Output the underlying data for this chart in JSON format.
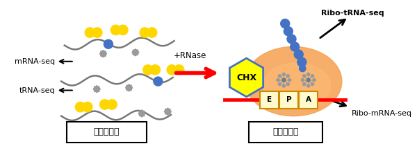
{
  "bg_color": "#ffffff",
  "label_mrna": "mRNA-seq",
  "label_trna": "tRNA-seq",
  "label_rnase": "+RNase",
  "label_chx": "CHX",
  "label_monosome": "モノソーム",
  "label_yeast": "酵母抜出液",
  "label_ribo_mrna": "Ribo-mRNA-seq",
  "label_ribo_trna": "Ribo-tRNA-seq",
  "label_epa": [
    "E",
    "P",
    "A"
  ],
  "yellow": "#FFD700",
  "blue": "#4472C4",
  "orange_bg": "#F5A050",
  "orange_light": "#FFBB77",
  "red": "#FF0000",
  "gray": "#888888",
  "gray_mol": "#999999",
  "chx_color": "#FFFF00",
  "chx_outline": "#4472C4",
  "wavy_color": "#777777",
  "epa_edge": "#CC8800",
  "epa_face": "#FFFACC"
}
